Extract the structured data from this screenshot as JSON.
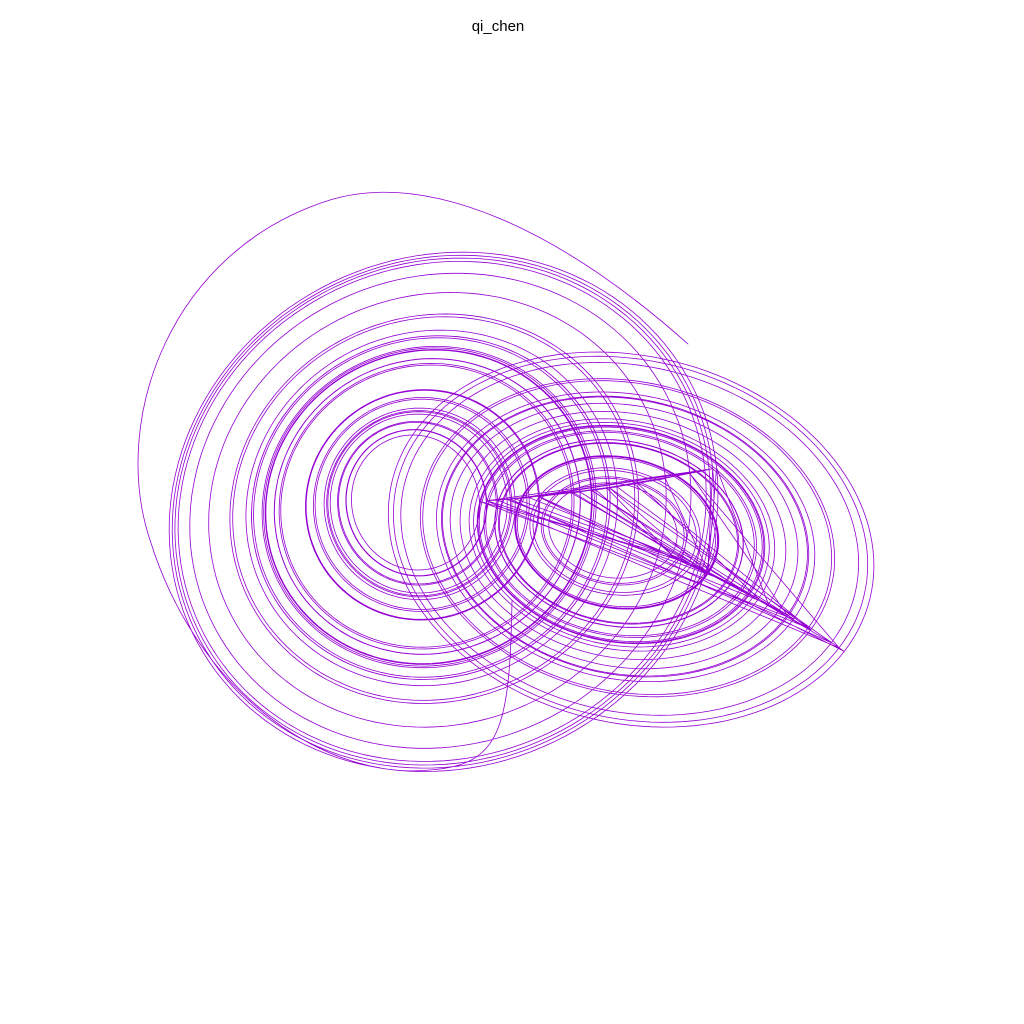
{
  "chart_data": {
    "type": "line",
    "title": "qi_chen",
    "xlabel": "",
    "ylabel": "",
    "grid": false,
    "axes_visible": false,
    "line_color": "#9400d3",
    "series": [
      {
        "values": []
      }
    ]
  }
}
